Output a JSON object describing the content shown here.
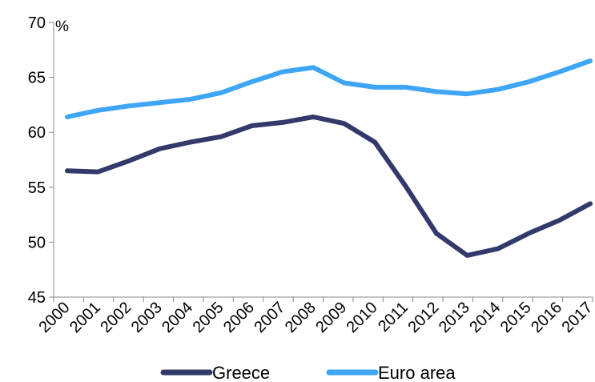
{
  "chart_data": {
    "type": "line",
    "title": "",
    "xlabel": "",
    "ylabel": "%",
    "ylim": [
      45,
      70
    ],
    "yticks": [
      45,
      50,
      55,
      60,
      65,
      70
    ],
    "grid": false,
    "legend_position": "bottom",
    "x": [
      "2000",
      "2001",
      "2002",
      "2003",
      "2004",
      "2005",
      "2006",
      "2007",
      "2008",
      "2009",
      "2010",
      "2011",
      "2012",
      "2013",
      "2014",
      "2015",
      "2016",
      "2017"
    ],
    "series": [
      {
        "name": "Greece",
        "color": "#333a6b",
        "values": [
          56.5,
          56.4,
          57.4,
          58.5,
          59.1,
          59.6,
          60.6,
          60.9,
          61.4,
          60.8,
          59.1,
          55.1,
          50.8,
          48.8,
          49.4,
          50.8,
          52.0,
          53.5
        ]
      },
      {
        "name": "Euro area",
        "color": "#3ea6f5",
        "values": [
          61.4,
          62.0,
          62.4,
          62.7,
          63.0,
          63.6,
          64.6,
          65.5,
          65.9,
          64.5,
          64.1,
          64.1,
          63.7,
          63.5,
          63.9,
          64.6,
          65.5,
          66.5
        ]
      }
    ]
  }
}
